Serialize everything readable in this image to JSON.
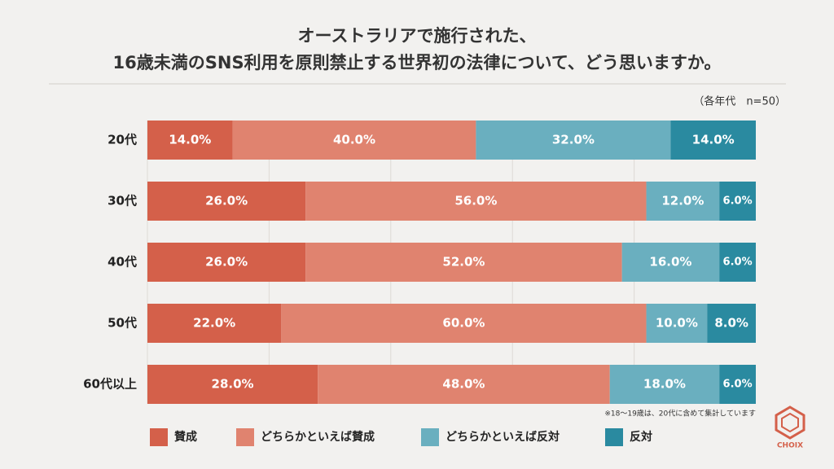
{
  "chart_data": {
    "type": "stacked-bar-horizontal",
    "title_lines": [
      "オーストラリアで施行された、",
      "16歳未満のSNS利用を原則禁止する世界初の法律について、どう思いますか。"
    ],
    "subtitle": "（各年代　n=50）",
    "note": "※18〜19歳は、20代に含めて集計しています",
    "categories": [
      "20代",
      "30代",
      "40代",
      "50代",
      "60代以上"
    ],
    "series": [
      {
        "name": "賛成",
        "color": "#d4604a",
        "values": [
          14,
          26,
          26,
          22,
          28
        ],
        "value_labels": [
          "14.0%",
          "26.0%",
          "26.0%",
          "22.0%",
          "28.0%"
        ]
      },
      {
        "name": "どちらかといえば賛成",
        "color": "#e0836f",
        "values": [
          40,
          56,
          52,
          60,
          48
        ],
        "value_labels": [
          "40.0%",
          "56.0%",
          "52.0%",
          "60.0%",
          "48.0%"
        ]
      },
      {
        "name": "どちらかといえば反対",
        "color": "#6aafbf",
        "values": [
          32,
          12,
          16,
          10,
          18
        ],
        "value_labels": [
          "32.0%",
          "12.0%",
          "16.0%",
          "10.0%",
          "18.0%"
        ]
      },
      {
        "name": "反対",
        "color": "#2a8aa0",
        "values": [
          14,
          6,
          6,
          8,
          6
        ],
        "value_labels": [
          "14.0%",
          "6.0%",
          "6.0%",
          "8.0%",
          "6.0%"
        ]
      }
    ],
    "xlim": [
      0,
      100
    ],
    "xticks": [
      20,
      40,
      60,
      80
    ],
    "grid": true
  },
  "brand": "CHOIX"
}
